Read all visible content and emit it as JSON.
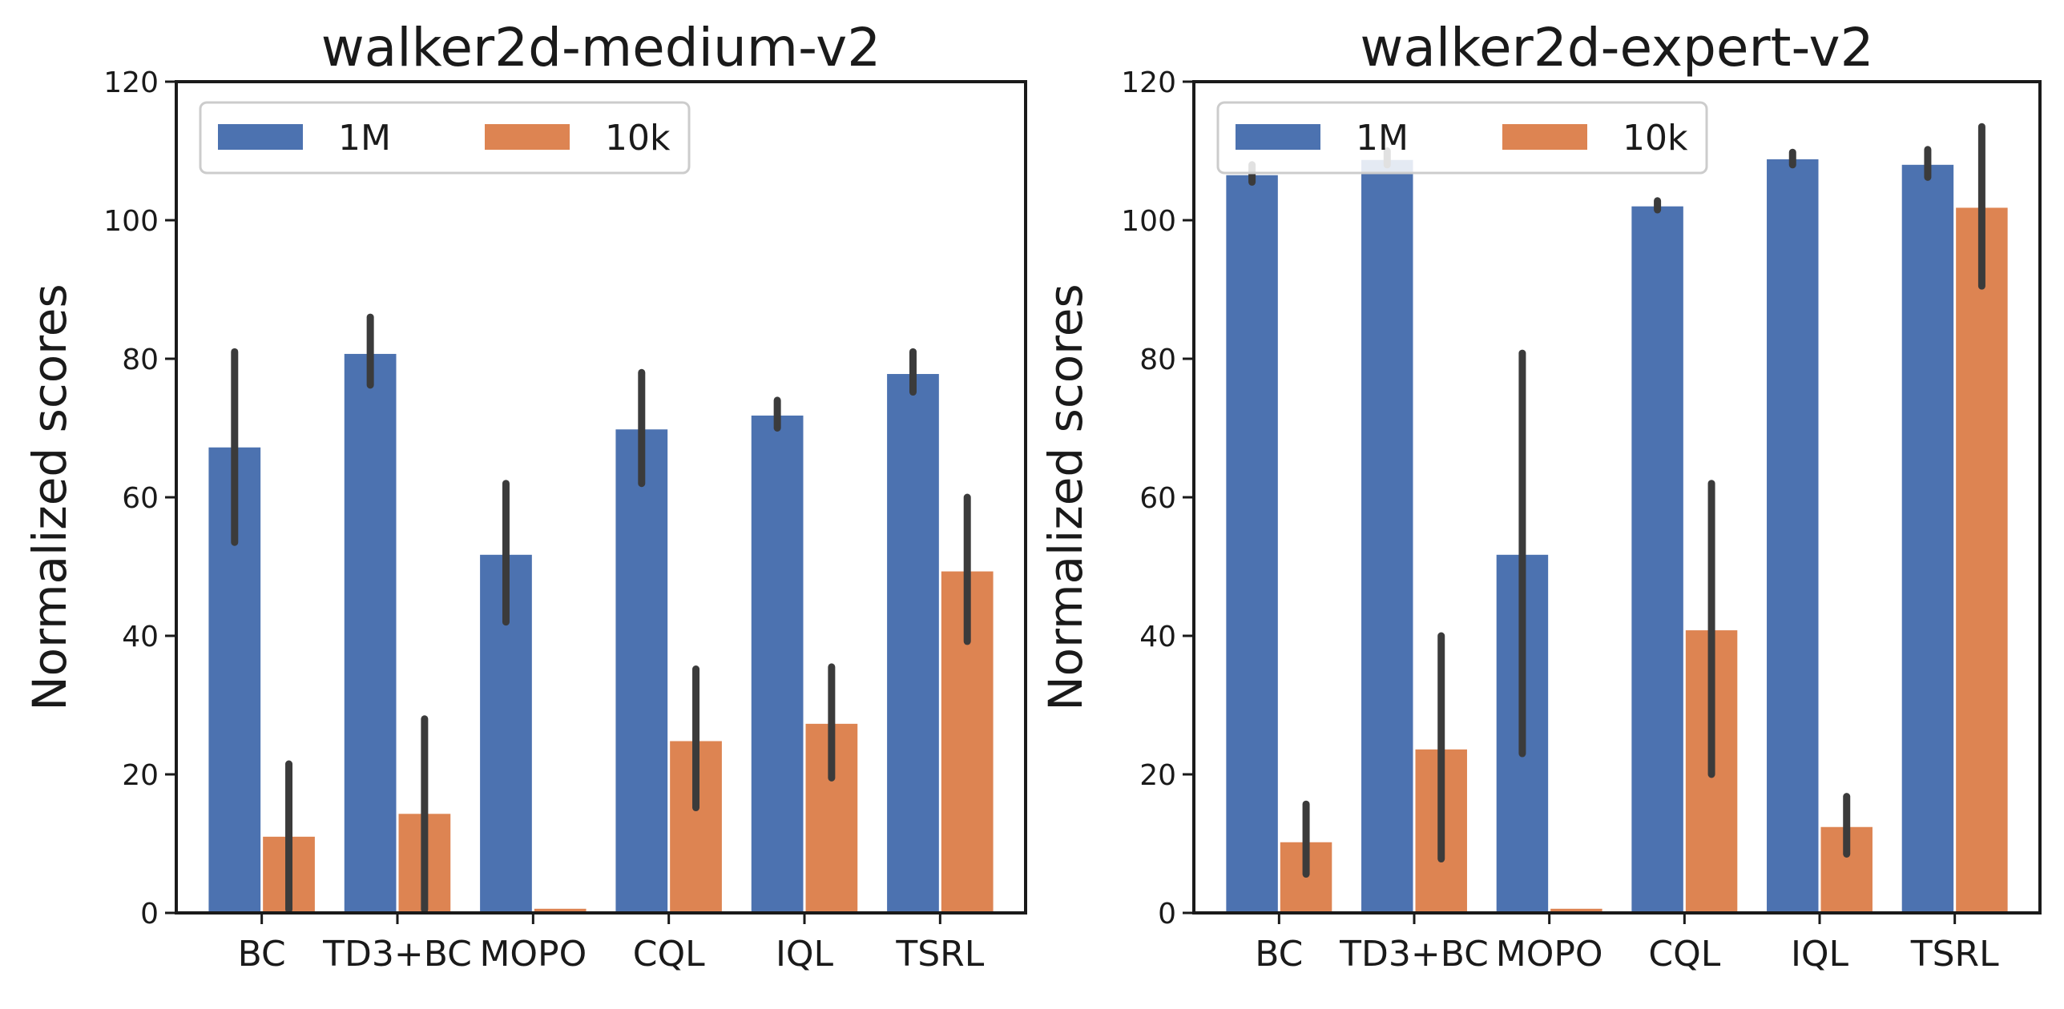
{
  "figure": {
    "colors": {
      "series_1M": "#4c72b0",
      "series_10k": "#dd8452",
      "errbar": "#3b3b3b",
      "axis": "#1a1a1a"
    }
  },
  "chart_data": [
    {
      "type": "bar",
      "title": "walker2d-medium-v2",
      "xlabel": "",
      "ylabel": "Normalized scores",
      "ylim": [
        0,
        120
      ],
      "yticks": [
        0,
        20,
        40,
        60,
        80,
        100,
        120
      ],
      "grid": false,
      "legend": "top-left",
      "categories": [
        "BC",
        "TD3+BC",
        "MOPO",
        "CQL",
        "IQL",
        "TSRL"
      ],
      "series": [
        {
          "name": "1M",
          "values": [
            67.2,
            80.7,
            51.7,
            69.8,
            71.8,
            77.8
          ],
          "err_low": [
            53.5,
            76.2,
            42.0,
            62.0,
            70.0,
            75.2
          ],
          "err_high": [
            81.0,
            86.0,
            62.0,
            78.0,
            74.0,
            81.0
          ]
        },
        {
          "name": "10k",
          "values": [
            11.0,
            14.3,
            0.6,
            24.8,
            27.3,
            49.3
          ],
          "err_low": [
            0.5,
            0.5,
            0.6,
            15.2,
            19.5,
            39.2
          ],
          "err_high": [
            21.5,
            28.0,
            0.6,
            35.2,
            35.5,
            60.0
          ]
        }
      ]
    },
    {
      "type": "bar",
      "title": "walker2d-expert-v2",
      "xlabel": "",
      "ylabel": "Normalized scores",
      "ylim": [
        0,
        120
      ],
      "yticks": [
        0,
        20,
        40,
        60,
        80,
        100,
        120
      ],
      "grid": false,
      "legend": "top-left",
      "categories": [
        "BC",
        "TD3+BC",
        "MOPO",
        "CQL",
        "IQL",
        "TSRL"
      ],
      "series": [
        {
          "name": "1M",
          "values": [
            106.5,
            108.7,
            51.7,
            102.0,
            108.8,
            108.0
          ],
          "err_low": [
            105.5,
            108.0,
            23.0,
            101.5,
            108.0,
            106.2
          ],
          "err_high": [
            108.0,
            110.0,
            80.8,
            102.8,
            109.8,
            110.2
          ]
        },
        {
          "name": "10k",
          "values": [
            10.2,
            23.6,
            0.6,
            40.8,
            12.4,
            101.8
          ],
          "err_low": [
            5.6,
            7.8,
            0.6,
            20.0,
            8.5,
            90.5
          ],
          "err_high": [
            15.7,
            40.0,
            0.6,
            62.0,
            16.8,
            113.5
          ]
        }
      ]
    }
  ]
}
